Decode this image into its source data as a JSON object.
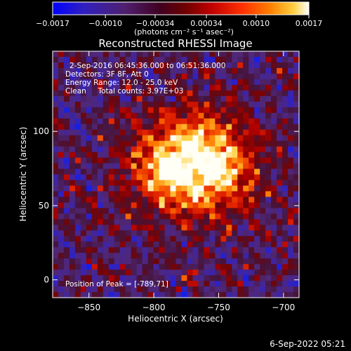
{
  "chart_data": {
    "type": "heatmap",
    "title": "Reconstructed RHESSI Image",
    "xlabel": "Heliocentric X (arcsec)",
    "ylabel": "Heliocentric Y (arcsec)",
    "xlim": [
      -878,
      -688
    ],
    "ylim": [
      -12,
      154
    ],
    "xticks": [
      -850,
      -800,
      -750,
      -700
    ],
    "yticks": [
      0,
      50,
      100
    ],
    "xtick_labels": [
      "−850",
      "−800",
      "−750",
      "−700"
    ],
    "ytick_labels": [
      "0",
      "50",
      "100"
    ],
    "colorbar": {
      "min": -0.0017,
      "max": 0.0017,
      "ticks": [
        -0.0017,
        -0.001,
        -0.00034,
        0.00034,
        0.001,
        0.0017
      ],
      "tick_labels": [
        "−0.0017",
        "−0.0010",
        "−0.00034",
        "0.00034",
        "0.0010",
        "0.0017"
      ],
      "units_label": "(photons cm⁻² s⁻¹ asec⁻²)",
      "colors": [
        "#0000ff",
        "#3020c0",
        "#502070",
        "#400020",
        "#700000",
        "#c00000",
        "#ff3000",
        "#ff8000",
        "#ffd040",
        "#ffffff"
      ]
    },
    "annotations": [
      "2-Sep-2016 06:45:36.000 to 06:51:36.000",
      "Detectors: 3F 8F, Att 0",
      "Energy Range: 12.0 - 25.0 keV",
      "Clean     Total counts: 3.97E+03"
    ],
    "peak_label": "Position of Peak = [-789,71]",
    "peak": [
      -789,
      71
    ],
    "source_center": [
      -770,
      78
    ],
    "source_width": [
      42,
      32
    ]
  },
  "footer": {
    "timestamp": "6-Sep-2022 05:21"
  }
}
